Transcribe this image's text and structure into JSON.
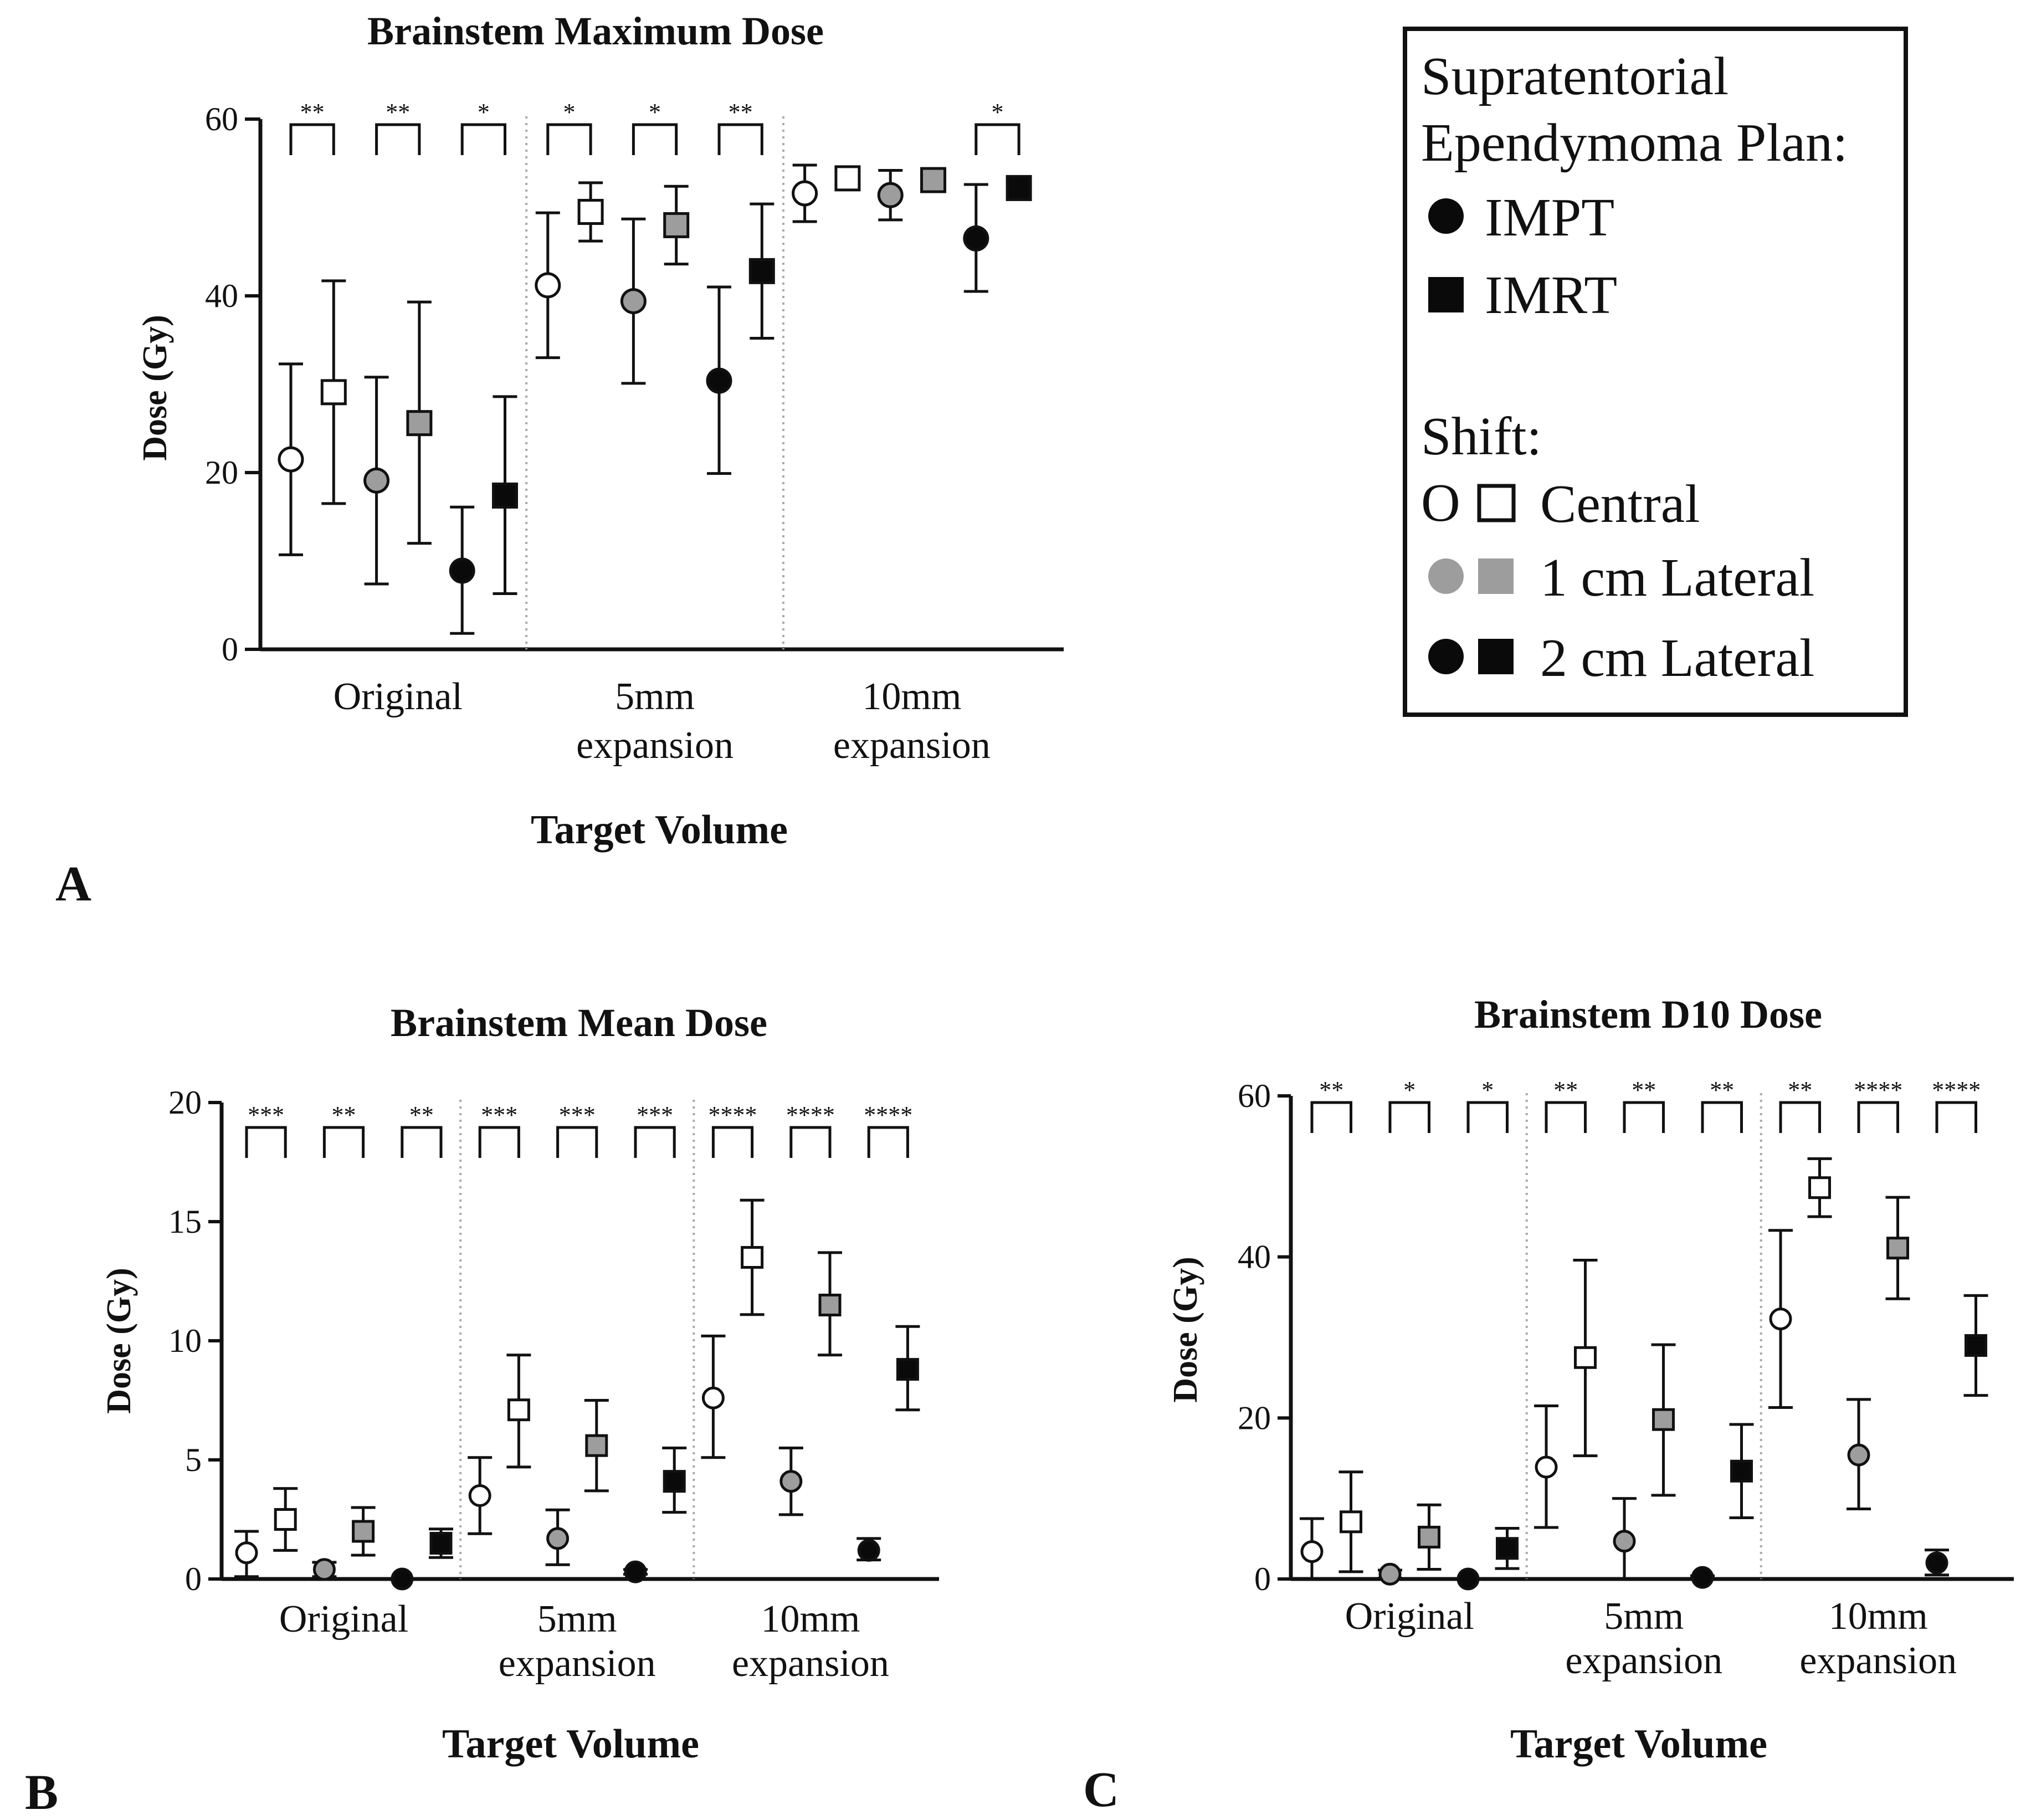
{
  "colors": {
    "white": "#ffffff",
    "gray": "#9d9d9d",
    "black": "#0a0a0a",
    "ink": "#111111",
    "divider": "#aaaaaa"
  },
  "panels": [
    {
      "letter": "A"
    },
    {
      "letter": "B"
    },
    {
      "letter": "C"
    }
  ],
  "legend": {
    "title_line1": "Supratentorial",
    "title_line2": "Ependymoma Plan:",
    "impt_label": "IMPT",
    "imrt_label": "IMRT",
    "shift_title": "Shift:",
    "central_prefix": "O",
    "central_label": "Central",
    "lateral1_label": "1 cm Lateral",
    "lateral2_label": "2 cm Lateral"
  },
  "chart_data": [
    {
      "type": "scatter",
      "title": "Brainstem Maximum Dose",
      "xlabel": "Target Volume",
      "ylabel": "Dose (Gy)",
      "ylim": [
        0,
        60
      ],
      "yticks": [
        "0",
        "20",
        "40",
        "60"
      ],
      "groups": [
        {
          "label": [
            "Original"
          ],
          "significance": [
            "**",
            "**",
            "*"
          ]
        },
        {
          "label": [
            "5mm",
            "expansion"
          ],
          "significance": [
            "*",
            "*",
            "**"
          ]
        },
        {
          "label": [
            "10mm",
            "expansion"
          ],
          "significance": [
            "",
            "",
            "*"
          ]
        }
      ],
      "series": [
        {
          "shift": "Central",
          "plan": "IMPT",
          "values": [
            21.5,
            41.2,
            51.6
          ],
          "lower": [
            10.7,
            33.0,
            48.4
          ],
          "upper": [
            32.3,
            49.4,
            54.8
          ]
        },
        {
          "shift": "Central",
          "plan": "IMRT",
          "values": [
            29.1,
            49.5,
            53.3
          ],
          "lower": [
            16.5,
            46.2,
            52.5
          ],
          "upper": [
            41.7,
            52.8,
            54.1
          ]
        },
        {
          "shift": "1 cm Lateral",
          "plan": "IMPT",
          "values": [
            19.1,
            39.4,
            51.4
          ],
          "lower": [
            7.4,
            30.1,
            48.6
          ],
          "upper": [
            30.8,
            48.7,
            54.2
          ]
        },
        {
          "shift": "1 cm Lateral",
          "plan": "IMRT",
          "values": [
            25.6,
            48.0,
            53.1
          ],
          "lower": [
            12.0,
            43.6,
            52.2
          ],
          "upper": [
            39.3,
            52.4,
            54.0
          ]
        },
        {
          "shift": "2 cm Lateral",
          "plan": "IMPT",
          "values": [
            8.9,
            30.4,
            46.5
          ],
          "lower": [
            1.8,
            19.9,
            40.5
          ],
          "upper": [
            16.1,
            41.0,
            52.6
          ]
        },
        {
          "shift": "2 cm Lateral",
          "plan": "IMRT",
          "values": [
            17.4,
            42.8,
            52.2
          ],
          "lower": [
            6.3,
            35.2,
            51.6
          ],
          "upper": [
            28.6,
            50.4,
            52.8
          ]
        }
      ]
    },
    {
      "type": "scatter",
      "title": "Brainstem Mean Dose",
      "xlabel": "Target Volume",
      "ylabel": "Dose (Gy)",
      "ylim": [
        0,
        20
      ],
      "yticks": [
        "0",
        "5",
        "10",
        "15",
        "20"
      ],
      "groups": [
        {
          "label": [
            "Original"
          ],
          "significance": [
            "***",
            "**",
            "**"
          ]
        },
        {
          "label": [
            "5mm",
            "expansion"
          ],
          "significance": [
            "***",
            "***",
            "***"
          ]
        },
        {
          "label": [
            "10mm",
            "expansion"
          ],
          "significance": [
            "****",
            "****",
            "****"
          ]
        }
      ],
      "series": [
        {
          "shift": "Central",
          "plan": "IMPT",
          "values": [
            1.1,
            3.5,
            7.6
          ],
          "lower": [
            0.1,
            1.9,
            5.1
          ],
          "upper": [
            2.0,
            5.1,
            10.2
          ]
        },
        {
          "shift": "Central",
          "plan": "IMRT",
          "values": [
            2.5,
            7.1,
            13.5
          ],
          "lower": [
            1.2,
            4.7,
            11.1
          ],
          "upper": [
            3.8,
            9.4,
            15.9
          ]
        },
        {
          "shift": "1 cm Lateral",
          "plan": "IMPT",
          "values": [
            0.4,
            1.7,
            4.1
          ],
          "lower": [
            0.1,
            0.6,
            2.7
          ],
          "upper": [
            0.7,
            2.9,
            5.5
          ]
        },
        {
          "shift": "1 cm Lateral",
          "plan": "IMRT",
          "values": [
            2.0,
            5.6,
            11.5
          ],
          "lower": [
            1.0,
            3.7,
            9.4
          ],
          "upper": [
            3.0,
            7.5,
            13.7
          ]
        },
        {
          "shift": "2 cm Lateral",
          "plan": "IMPT",
          "values": [
            0.0,
            0.3,
            1.2
          ],
          "lower": [
            0.0,
            0.2,
            0.8
          ],
          "upper": [
            0.0,
            0.4,
            1.7
          ]
        },
        {
          "shift": "2 cm Lateral",
          "plan": "IMRT",
          "values": [
            1.5,
            4.1,
            8.8
          ],
          "lower": [
            0.9,
            2.8,
            7.1
          ],
          "upper": [
            2.1,
            5.5,
            10.6
          ]
        }
      ]
    },
    {
      "type": "scatter",
      "title": "Brainstem D10 Dose",
      "xlabel": "Target Volume",
      "ylabel": "Dose (Gy)",
      "ylim": [
        0,
        60
      ],
      "yticks": [
        "0",
        "20",
        "40",
        "60"
      ],
      "groups": [
        {
          "label": [
            "Original"
          ],
          "significance": [
            "**",
            "*",
            "*"
          ]
        },
        {
          "label": [
            "5mm",
            "expansion"
          ],
          "significance": [
            "**",
            "**",
            "**"
          ]
        },
        {
          "label": [
            "10mm",
            "expansion"
          ],
          "significance": [
            "**",
            "****",
            "****"
          ]
        }
      ],
      "series": [
        {
          "shift": "Central",
          "plan": "IMPT",
          "values": [
            3.4,
            13.9,
            32.3
          ],
          "lower": [
            0.0,
            6.4,
            21.3
          ],
          "upper": [
            7.5,
            21.5,
            43.3
          ]
        },
        {
          "shift": "Central",
          "plan": "IMRT",
          "values": [
            7.1,
            27.5,
            48.6
          ],
          "lower": [
            0.9,
            15.3,
            45.0
          ],
          "upper": [
            13.3,
            39.6,
            52.2
          ]
        },
        {
          "shift": "1 cm Lateral",
          "plan": "IMPT",
          "values": [
            0.6,
            4.7,
            15.4
          ],
          "lower": [
            0.1,
            0.0,
            8.7
          ],
          "upper": [
            1.1,
            10.0,
            22.3
          ]
        },
        {
          "shift": "1 cm Lateral",
          "plan": "IMRT",
          "values": [
            5.2,
            19.8,
            41.1
          ],
          "lower": [
            1.2,
            10.4,
            34.8
          ],
          "upper": [
            9.2,
            29.1,
            47.4
          ]
        },
        {
          "shift": "2 cm Lateral",
          "plan": "IMPT",
          "values": [
            0.0,
            0.2,
            2.0
          ],
          "lower": [
            0.0,
            0.0,
            0.5
          ],
          "upper": [
            0.0,
            0.4,
            3.6
          ]
        },
        {
          "shift": "2 cm Lateral",
          "plan": "IMRT",
          "values": [
            3.8,
            13.4,
            29.0
          ],
          "lower": [
            1.3,
            7.6,
            22.8
          ],
          "upper": [
            6.3,
            19.2,
            35.2
          ]
        }
      ]
    }
  ]
}
